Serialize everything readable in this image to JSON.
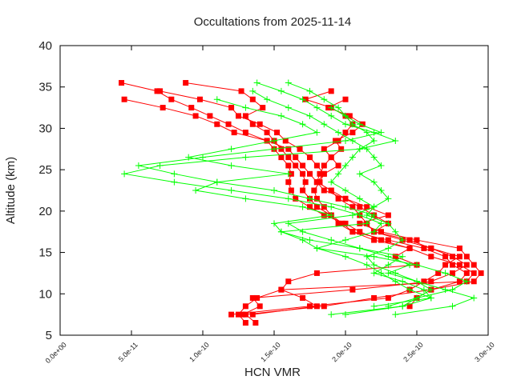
{
  "chart_data": {
    "type": "line",
    "title": "Occultations from 2025-11-14",
    "xlabel": "HCN VMR",
    "ylabel": "Altitude (km)",
    "xlim": [
      0,
      3e-10
    ],
    "ylim": [
      5,
      40
    ],
    "xticks": [
      "0.0e+00",
      "5.0e-11",
      "1.0e-10",
      "1.5e-10",
      "2.0e-10",
      "2.5e-10",
      "3.0e-10"
    ],
    "xtick_values": [
      0,
      5e-11,
      1e-10,
      1.5e-10,
      2e-10,
      2.5e-10,
      3e-10
    ],
    "yticks": [
      "5",
      "10",
      "15",
      "20",
      "25",
      "30",
      "35",
      "40"
    ],
    "ytick_values": [
      5,
      10,
      15,
      20,
      25,
      30,
      35,
      40
    ],
    "grid": false,
    "legend": "none",
    "colors": {
      "red_series": "#ff0000",
      "green_series": "#00ff00",
      "gray_points": "#a0a0a0"
    },
    "series": [
      {
        "color": "#ff0000",
        "marker": "square",
        "altitude": [
          35.5,
          34.5,
          33.5,
          32.5,
          31.5,
          30.5,
          29.5,
          28.5,
          27.5,
          26.5,
          25.5,
          24.5,
          23.5,
          22.5,
          21.5,
          20.5,
          19.5,
          18.5,
          17.5,
          16.5,
          15.5,
          14.5,
          13.5,
          12.5,
          11.5,
          10.5,
          9.5,
          8.5,
          7.5,
          6.5
        ],
        "vmr": [
          4.3e-11,
          6.8e-11,
          7.8e-11,
          9.2e-11,
          1.05e-10,
          1.18e-10,
          1.3e-10,
          1.45e-10,
          1.5e-10,
          1.55e-10,
          1.6e-10,
          1.62e-10,
          1.6e-10,
          1.62e-10,
          1.65e-10,
          1.75e-10,
          1.85e-10,
          2e-10,
          2.1e-10,
          2.25e-10,
          2.45e-10,
          2.6e-10,
          2.8e-10,
          2.9e-10,
          2.85e-10,
          1.55e-10,
          1.38e-10,
          1.3e-10,
          1.25e-10,
          1.3e-10
        ]
      },
      {
        "color": "#ff0000",
        "marker": "square",
        "altitude": [
          35.5,
          34.5,
          33.5,
          32.5,
          31.5,
          30.5,
          29.5,
          28.5,
          27.5,
          26.5,
          25.5,
          24.5,
          23.5,
          22.5,
          21.5,
          20.5,
          19.5,
          18.5,
          17.5,
          16.5,
          15.5,
          14.5,
          13.5,
          12.5,
          11.5,
          10.5,
          9.5,
          8.5,
          7.5,
          6.5
        ],
        "vmr": [
          8.8e-11,
          1.27e-10,
          1.35e-10,
          1.42e-10,
          1.3e-10,
          1.35e-10,
          1.45e-10,
          1.5e-10,
          1.55e-10,
          1.6e-10,
          1.65e-10,
          1.7e-10,
          1.72e-10,
          1.7e-10,
          1.75e-10,
          1.8e-10,
          1.9e-10,
          1.95e-10,
          2.05e-10,
          2.3e-10,
          2.55e-10,
          2.7e-10,
          2.75e-10,
          2.85e-10,
          2.8e-10,
          2.6e-10,
          2.2e-10,
          1.85e-10,
          1.3e-10,
          1.37e-10
        ]
      },
      {
        "color": "#ff0000",
        "marker": "square",
        "altitude": [
          34.5,
          33.5,
          32.5,
          31.5,
          30.5,
          29.5,
          28.5,
          27.5,
          26.5,
          25.5,
          24.5,
          23.5,
          22.5,
          21.5,
          20.5,
          19.5,
          18.5,
          17.5,
          16.5,
          15.5,
          14.5,
          13.5,
          12.5,
          11.5,
          10.5,
          9.5,
          8.5,
          7.5
        ],
        "vmr": [
          7e-11,
          9.8e-11,
          1.2e-10,
          1.25e-10,
          1.4e-10,
          1.52e-10,
          1.58e-10,
          1.68e-10,
          1.75e-10,
          1.8e-10,
          1.85e-10,
          1.8e-10,
          1.9e-10,
          1.95e-10,
          2.05e-10,
          2.1e-10,
          2.15e-10,
          2.2e-10,
          2.45e-10,
          2.6e-10,
          2.8e-10,
          2.7e-10,
          2.65e-10,
          2.55e-10,
          2.45e-10,
          2.3e-10,
          1.75e-10,
          1.2e-10
        ]
      },
      {
        "color": "#ff0000",
        "marker": "square",
        "altitude": [
          33.5,
          32.5,
          31.5,
          30.5,
          29.5,
          28.5,
          27.5,
          26.5,
          25.5,
          24.5,
          23.5,
          22.5,
          21.5,
          20.5,
          19.5,
          18.5,
          17.5,
          16.5,
          15.5,
          14.5,
          13.5,
          12.5,
          11.5,
          10.5,
          9.5,
          8.5,
          7.5
        ],
        "vmr": [
          4.5e-11,
          7.2e-11,
          9.5e-11,
          1.1e-10,
          1.22e-10,
          1.45e-10,
          1.6e-10,
          1.65e-10,
          1.7e-10,
          1.75e-10,
          1.8e-10,
          1.85e-10,
          2e-10,
          2.1e-10,
          2.2e-10,
          2.3e-10,
          2.2e-10,
          2.4e-10,
          2.6e-10,
          2.75e-10,
          2.85e-10,
          2.75e-10,
          2.6e-10,
          2.05e-10,
          1.35e-10,
          1.4e-10,
          1.28e-10
        ]
      },
      {
        "color": "#ff0000",
        "marker": "square",
        "altitude": [
          34.5,
          33.5,
          32.5,
          31.5,
          30.5,
          29.5,
          28.5,
          27.5,
          26.5,
          25.5,
          24.5,
          23.5,
          22.5,
          21.5,
          20.5,
          19.5,
          18.5,
          17.5,
          16.5,
          15.5,
          14.5,
          13.5,
          12.5,
          11.5,
          10.5,
          9.5,
          8.5,
          7.5
        ],
        "vmr": [
          1.9e-10,
          1.72e-10,
          1.9e-10,
          2e-10,
          2.05e-10,
          2e-10,
          1.95e-10,
          1.85e-10,
          1.9e-10,
          1.95e-10,
          1.85e-10,
          1.82e-10,
          1.78e-10,
          1.8e-10,
          1.85e-10,
          1.9e-10,
          1.98e-10,
          2.05e-10,
          2.2e-10,
          2.45e-10,
          2.35e-10,
          2.5e-10,
          1.8e-10,
          1.6e-10,
          1.55e-10,
          1.7e-10,
          1.8e-10,
          1.35e-10
        ]
      },
      {
        "color": "#ff0000",
        "marker": "square",
        "altitude": [
          33.5,
          32.5,
          31.5,
          30.5,
          29.5,
          28.5,
          27.5,
          26.5,
          25.5,
          24.5,
          23.5,
          22.5,
          21.5,
          20.5,
          19.5,
          18.5,
          17.5,
          16.5,
          15.5,
          14.5,
          13.5,
          12.5,
          11.5,
          10.5,
          9.5,
          8.5
        ],
        "vmr": [
          2e-10,
          1.88e-10,
          2.03e-10,
          2.12e-10,
          2.05e-10,
          1.93e-10,
          1.97e-10,
          1.9e-10,
          1.85e-10,
          1.82e-10,
          1.8e-10,
          1.9e-10,
          2e-10,
          2.15e-10,
          2.3e-10,
          2.1e-10,
          2.25e-10,
          2.5e-10,
          2.8e-10,
          2.85e-10,
          2.9e-10,
          2.95e-10,
          2.9e-10,
          2.6e-10,
          2.5e-10,
          2.45e-10
        ]
      },
      {
        "color": "#00ff00",
        "marker": "plus",
        "altitude": [
          35.5,
          34.5,
          33.5,
          32.5,
          31.5,
          30.5,
          29.5,
          28.5,
          27.5,
          26.5,
          25.5,
          24.5,
          23.5,
          22.5,
          21.5,
          20.5,
          19.5,
          18.5,
          17.5,
          16.5,
          15.5,
          14.5,
          13.5,
          12.5,
          11.5,
          10.5,
          9.5,
          8.5
        ],
        "vmr": [
          1.38e-10,
          1.55e-10,
          1.7e-10,
          1.8e-10,
          1.9e-10,
          2e-10,
          2.2e-10,
          2.35e-10,
          2.1e-10,
          1.3e-10,
          7e-11,
          4.5e-11,
          8e-11,
          1.2e-10,
          1.6e-10,
          1.9e-10,
          2.1e-10,
          2.25e-10,
          2.2e-10,
          2e-10,
          1.8e-10,
          2.2e-10,
          2.5e-10,
          2.7e-10,
          2.85e-10,
          2.75e-10,
          2.5e-10,
          2.3e-10
        ]
      },
      {
        "color": "#00ff00",
        "marker": "plus",
        "altitude": [
          35.5,
          34.5,
          33.5,
          32.5,
          31.5,
          30.5,
          29.5,
          28.5,
          27.5,
          26.5,
          25.5,
          24.5,
          23.5,
          22.5,
          21.5,
          20.5,
          19.5,
          18.5,
          17.5,
          16.5,
          15.5,
          14.5,
          13.5,
          12.5,
          11.5,
          10.5,
          9.5,
          8.5,
          7.5
        ],
        "vmr": [
          1.6e-10,
          1.75e-10,
          1.85e-10,
          1.95e-10,
          2e-10,
          2.1e-10,
          2.25e-10,
          2e-10,
          1.5e-10,
          1e-10,
          5.5e-11,
          8e-11,
          1.1e-10,
          1.5e-10,
          1.75e-10,
          2e-10,
          2.2e-10,
          2.15e-10,
          1.55e-10,
          1.75e-10,
          2.1e-10,
          2.4e-10,
          2.3e-10,
          2.2e-10,
          2.4e-10,
          2.55e-10,
          2.6e-10,
          2.4e-10,
          1.9e-10
        ]
      },
      {
        "color": "#00ff00",
        "marker": "plus",
        "altitude": [
          34.5,
          33.5,
          32.5,
          31.5,
          30.5,
          29.5,
          28.5,
          27.5,
          26.5,
          25.5,
          24.5,
          23.5,
          22.5,
          21.5,
          20.5,
          19.5,
          18.5,
          17.5,
          16.5,
          15.5,
          14.5,
          13.5,
          12.5,
          11.5,
          10.5,
          9.5,
          8.5,
          7.5
        ],
        "vmr": [
          1.35e-10,
          1.45e-10,
          1.6e-10,
          1.75e-10,
          1.85e-10,
          1.95e-10,
          2.05e-10,
          2.15e-10,
          2.2e-10,
          2.25e-10,
          2.1e-10,
          2.2e-10,
          2.25e-10,
          2.3e-10,
          2.2e-10,
          2.15e-10,
          2.3e-10,
          2.35e-10,
          2.4e-10,
          2.3e-10,
          2.15e-10,
          2.2e-10,
          2.35e-10,
          2.5e-10,
          2.7e-10,
          2.9e-10,
          2.75e-10,
          2.35e-10
        ]
      },
      {
        "color": "#00ff00",
        "marker": "plus",
        "altitude": [
          33.5,
          32.5,
          31.5,
          30.5,
          29.5,
          28.5,
          27.5,
          26.5,
          25.5,
          24.5,
          23.5,
          22.5,
          21.5,
          20.5,
          19.5,
          18.5,
          17.5,
          16.5,
          15.5,
          14.5,
          13.5,
          12.5,
          11.5,
          10.5,
          9.5,
          8.5
        ],
        "vmr": [
          1.1e-10,
          1.3e-10,
          1.55e-10,
          1.7e-10,
          1.8e-10,
          1.5e-10,
          1.2e-10,
          9e-11,
          1.2e-10,
          1.6e-10,
          1.1e-10,
          9.5e-11,
          1.3e-10,
          1.7e-10,
          1.9e-10,
          1.5e-10,
          1.55e-10,
          1.7e-10,
          1.8e-10,
          2e-10,
          2.15e-10,
          2.25e-10,
          2.35e-10,
          2.45e-10,
          2.6e-10,
          2.2e-10
        ]
      },
      {
        "color": "#00ff00",
        "marker": "plus",
        "altitude": [
          32.5,
          31.5,
          30.5,
          29.5,
          28.5,
          27.5,
          26.5,
          25.5,
          24.5,
          23.5,
          22.5,
          21.5,
          20.5,
          19.5,
          18.5,
          17.5,
          16.5,
          15.5,
          14.5,
          13.5,
          12.5,
          11.5,
          10.5,
          9.5,
          8.5,
          7.5
        ],
        "vmr": [
          1.9e-10,
          2e-10,
          2.05e-10,
          2.15e-10,
          2.2e-10,
          2.1e-10,
          2.05e-10,
          2e-10,
          1.95e-10,
          1.9e-10,
          2e-10,
          2.1e-10,
          2.2e-10,
          2.05e-10,
          1.6e-10,
          1.7e-10,
          1.9e-10,
          2.1e-10,
          2.3e-10,
          2.45e-10,
          2.3e-10,
          2.5e-10,
          2.6e-10,
          2.5e-10,
          2.4e-10,
          2e-10
        ]
      }
    ]
  }
}
